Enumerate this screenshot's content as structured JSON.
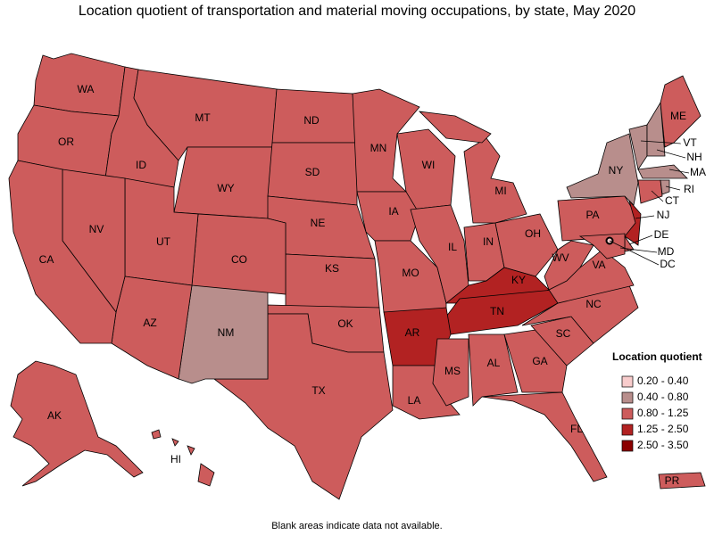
{
  "title": "Location quotient of transportation and material moving occupations, by state, May 2020",
  "legend": {
    "title": "Location quotient",
    "items": [
      {
        "label": "0.20 - 0.40",
        "color": "#f8cccc"
      },
      {
        "label": "0.40 - 0.80",
        "color": "#b88e8c"
      },
      {
        "label": "0.80 - 1.25",
        "color": "#cd5c5c"
      },
      {
        "label": "1.25 - 2.50",
        "color": "#b22222"
      },
      {
        "label": "2.50 - 3.50",
        "color": "#8b0000"
      }
    ]
  },
  "states": [
    {
      "label": "WA",
      "range": "0.80 - 1.25"
    },
    {
      "label": "OR",
      "range": "0.80 - 1.25"
    },
    {
      "label": "ID",
      "range": "0.80 - 1.25"
    },
    {
      "label": "MT",
      "range": "0.80 - 1.25"
    },
    {
      "label": "WY",
      "range": "0.80 - 1.25"
    },
    {
      "label": "ND",
      "range": "0.80 - 1.25"
    },
    {
      "label": "SD",
      "range": "0.80 - 1.25"
    },
    {
      "label": "NE",
      "range": "0.80 - 1.25"
    },
    {
      "label": "KS",
      "range": "0.80 - 1.25"
    },
    {
      "label": "OK",
      "range": "0.80 - 1.25"
    },
    {
      "label": "TX",
      "range": "0.80 - 1.25"
    },
    {
      "label": "NM",
      "range": "0.40 - 0.80"
    },
    {
      "label": "CO",
      "range": "0.80 - 1.25"
    },
    {
      "label": "UT",
      "range": "0.80 - 1.25"
    },
    {
      "label": "AZ",
      "range": "0.80 - 1.25"
    },
    {
      "label": "NV",
      "range": "0.80 - 1.25"
    },
    {
      "label": "CA",
      "range": "0.80 - 1.25"
    },
    {
      "label": "MN",
      "range": "0.80 - 1.25"
    },
    {
      "label": "WI",
      "range": "0.80 - 1.25"
    },
    {
      "label": "IA",
      "range": "0.80 - 1.25"
    },
    {
      "label": "MO",
      "range": "0.80 - 1.25"
    },
    {
      "label": "IL",
      "range": "0.80 - 1.25"
    },
    {
      "label": "IN",
      "range": "0.80 - 1.25"
    },
    {
      "label": "MI",
      "range": "0.80 - 1.25"
    },
    {
      "label": "OH",
      "range": "0.80 - 1.25"
    },
    {
      "label": "KY",
      "range": "1.25 - 2.50"
    },
    {
      "label": "TN",
      "range": "1.25 - 2.50"
    },
    {
      "label": "AR",
      "range": "1.25 - 2.50"
    },
    {
      "label": "LA",
      "range": "0.80 - 1.25"
    },
    {
      "label": "MS",
      "range": "0.80 - 1.25"
    },
    {
      "label": "AL",
      "range": "0.80 - 1.25"
    },
    {
      "label": "GA",
      "range": "0.80 - 1.25"
    },
    {
      "label": "FL",
      "range": "0.80 - 1.25"
    },
    {
      "label": "SC",
      "range": "0.80 - 1.25"
    },
    {
      "label": "NC",
      "range": "0.80 - 1.25"
    },
    {
      "label": "VA",
      "range": "0.80 - 1.25"
    },
    {
      "label": "WV",
      "range": "0.80 - 1.25"
    },
    {
      "label": "PA",
      "range": "0.80 - 1.25"
    },
    {
      "label": "NY",
      "range": "0.40 - 0.80"
    },
    {
      "label": "VT",
      "range": "0.40 - 0.80"
    },
    {
      "label": "NH",
      "range": "0.40 - 0.80"
    },
    {
      "label": "ME",
      "range": "0.80 - 1.25"
    },
    {
      "label": "MA",
      "range": "0.40 - 0.80"
    },
    {
      "label": "CT",
      "range": "0.80 - 1.25"
    },
    {
      "label": "RI",
      "range": "0.40 - 0.80"
    },
    {
      "label": "NJ",
      "range": "1.25 - 2.50"
    },
    {
      "label": "DE",
      "range": "0.80 - 1.25"
    },
    {
      "label": "MD",
      "range": "0.80 - 1.25"
    },
    {
      "label": "DC",
      "range": "0.20 - 0.40"
    },
    {
      "label": "AK",
      "range": "0.80 - 1.25"
    },
    {
      "label": "HI",
      "range": "0.80 - 1.25"
    },
    {
      "label": "PR",
      "range": "0.80 - 1.25"
    }
  ],
  "note": "Blank areas indicate data not available."
}
